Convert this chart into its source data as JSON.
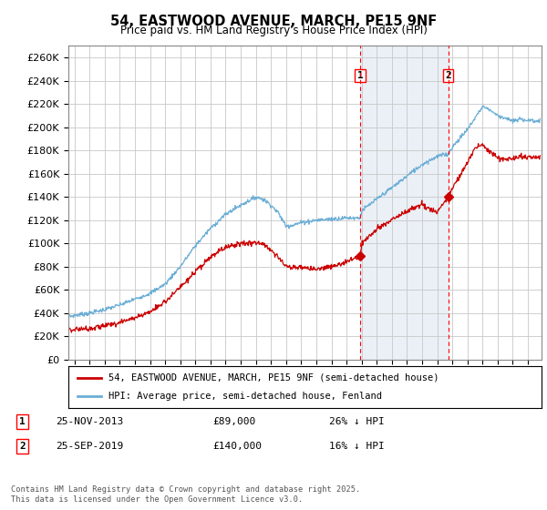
{
  "title1": "54, EASTWOOD AVENUE, MARCH, PE15 9NF",
  "title2": "Price paid vs. HM Land Registry's House Price Index (HPI)",
  "ylim": [
    0,
    270000
  ],
  "yticks": [
    0,
    20000,
    40000,
    60000,
    80000,
    100000,
    120000,
    140000,
    160000,
    180000,
    200000,
    220000,
    240000,
    260000
  ],
  "hpi_color": "#6baed6",
  "price_color": "#cc0000",
  "legend_house": "54, EASTWOOD AVENUE, MARCH, PE15 9NF (semi-detached house)",
  "legend_hpi": "HPI: Average price, semi-detached house, Fenland",
  "sale1_date": "25-NOV-2013",
  "sale1_price": "£89,000",
  "sale1_hpi": "26% ↓ HPI",
  "sale1_x": 2013.9,
  "sale1_y": 89000,
  "sale2_date": "25-SEP-2019",
  "sale2_price": "£140,000",
  "sale2_hpi": "16% ↓ HPI",
  "sale2_x": 2019.73,
  "sale2_y": 140000,
  "footnote": "Contains HM Land Registry data © Crown copyright and database right 2025.\nThis data is licensed under the Open Government Licence v3.0.",
  "bg_color": "#ffffff",
  "grid_color": "#c8c8c8",
  "shade_color": "#dce6f1",
  "vline1_x": 2013.9,
  "vline2_x": 2019.73,
  "xlim_left": 1994.6,
  "xlim_right": 2025.9
}
